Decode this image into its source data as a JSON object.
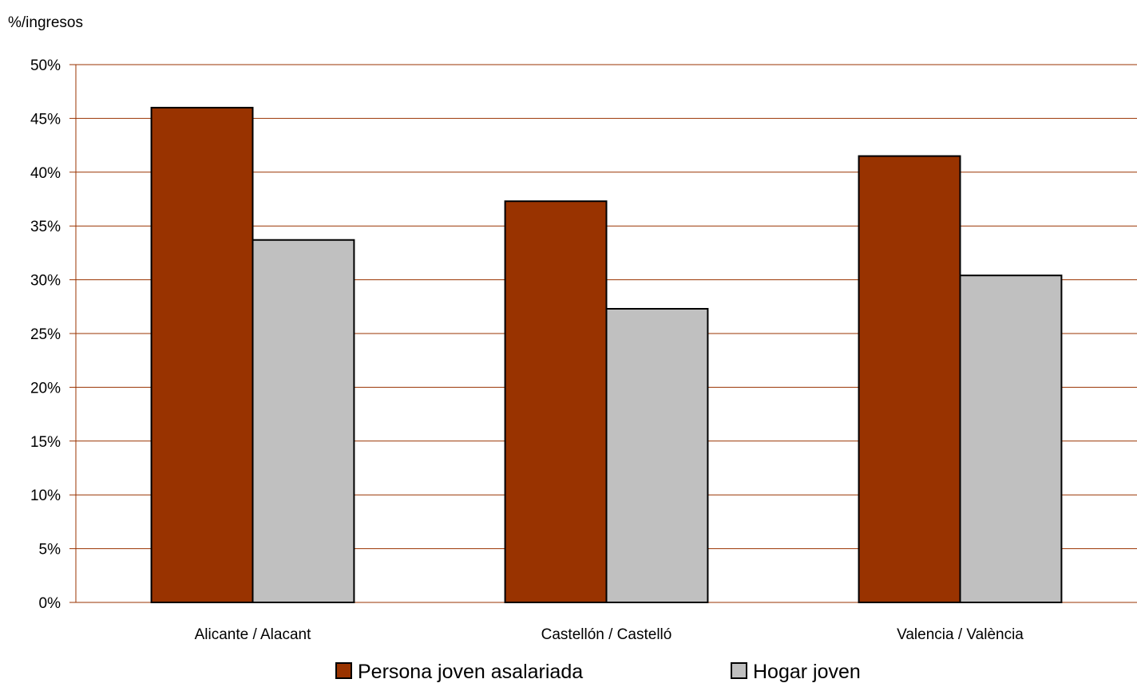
{
  "chart_data": {
    "type": "bar",
    "title": "",
    "ylabel": "%/ingresos",
    "xlabel": "",
    "categories": [
      "Alicante / Alacant",
      "Castellón / Castelló",
      "Valencia / València"
    ],
    "series": [
      {
        "name": "Persona joven asalariada",
        "values": [
          46.0,
          37.3,
          41.5
        ],
        "color": "#993300"
      },
      {
        "name": "Hogar joven",
        "values": [
          33.7,
          27.3,
          30.4
        ],
        "color": "#c0c0c0"
      }
    ],
    "ylim": [
      0,
      50
    ],
    "ytick_step": 5,
    "ytick_labels": [
      "0%",
      "5%",
      "10%",
      "15%",
      "20%",
      "25%",
      "30%",
      "35%",
      "40%",
      "45%",
      "50%"
    ],
    "grid": true,
    "grid_color": "#993300",
    "bar_border_color": "#000000",
    "legend_position": "bottom"
  }
}
